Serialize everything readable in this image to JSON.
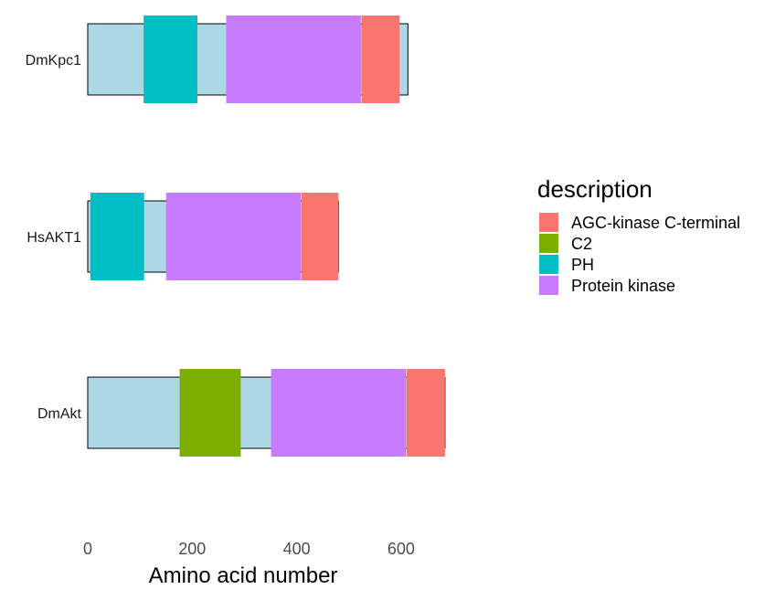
{
  "chart_data": {
    "type": "bar",
    "xlabel": "Amino acid number",
    "ylabel": "",
    "xlim": [
      0,
      700
    ],
    "xticks": [
      0,
      200,
      400,
      600
    ],
    "grid": false,
    "legend": {
      "title": "description",
      "placement": "right",
      "entries": [
        {
          "name": "AGC-kinase C-terminal",
          "color": "#F8766D"
        },
        {
          "name": "C2",
          "color": "#7CAE00"
        },
        {
          "name": "PH",
          "color": "#00BFC4"
        },
        {
          "name": "Protein kinase",
          "color": "#C77CFF"
        }
      ]
    },
    "backbone_color": "#ADD8E6",
    "proteins": [
      {
        "name": "DmKpc1",
        "length": 613,
        "domains": [
          {
            "type": "PH",
            "start": 107,
            "end": 210
          },
          {
            "type": "Protein kinase",
            "start": 265,
            "end": 523
          },
          {
            "type": "AGC-kinase C-terminal",
            "start": 524,
            "end": 597
          }
        ]
      },
      {
        "name": "HsAKT1",
        "length": 480,
        "domains": [
          {
            "type": "PH",
            "start": 5,
            "end": 108
          },
          {
            "type": "Protein kinase",
            "start": 150,
            "end": 408
          },
          {
            "type": "AGC-kinase C-terminal",
            "start": 409,
            "end": 480
          }
        ]
      },
      {
        "name": "DmAkt",
        "length": 684,
        "domains": [
          {
            "type": "C2",
            "start": 176,
            "end": 293
          },
          {
            "type": "Protein kinase",
            "start": 351,
            "end": 609
          },
          {
            "type": "AGC-kinase C-terminal",
            "start": 610,
            "end": 684
          }
        ]
      }
    ]
  }
}
